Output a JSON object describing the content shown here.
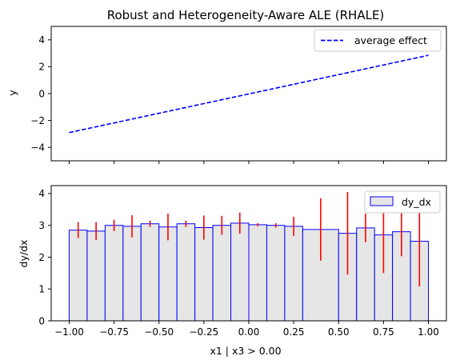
{
  "chart_data": [
    {
      "type": "line",
      "title": "Robust and Heterogeneity-Aware ALE (RHALE)",
      "xlabel": "",
      "ylabel": "y",
      "xlim": [
        -1.1,
        1.1
      ],
      "ylim": [
        -5,
        5
      ],
      "yticks": [
        -4,
        -2,
        0,
        2,
        4
      ],
      "xticks": [
        -1.0,
        -0.75,
        -0.5,
        -0.25,
        0.0,
        0.25,
        0.5,
        0.75,
        1.0
      ],
      "show_x_tick_labels": false,
      "grid": false,
      "legend_placement": "top-right",
      "series": [
        {
          "name": "average effect",
          "color": "#0000ff",
          "style": "dashed",
          "x": [
            -1.0,
            1.0
          ],
          "y": [
            -2.9,
            2.85
          ]
        }
      ]
    },
    {
      "type": "bar",
      "title": "",
      "xlabel": "x1 | x3 > 0.00",
      "ylabel": "dy/dx",
      "xlim": [
        -1.1,
        1.1
      ],
      "ylim": [
        0,
        4.25
      ],
      "yticks": [
        0,
        1,
        2,
        3,
        4
      ],
      "xticks": [
        -1.0,
        -0.75,
        -0.5,
        -0.25,
        0.0,
        0.25,
        0.5,
        0.75,
        1.0
      ],
      "xtick_labels": [
        "−1.00",
        "−0.75",
        "−0.50",
        "−0.25",
        "0.00",
        "0.25",
        "0.50",
        "0.75",
        "1.00"
      ],
      "grid": false,
      "legend_placement": "top-right",
      "bar_fill": "#e6e6e6",
      "bar_edge": "#0000ff",
      "error_color": "#ff0000",
      "series": [
        {
          "name": "dy_dx",
          "bins": [
            {
              "x0": -1.0,
              "x1": -0.9,
              "value": 2.85,
              "err": 0.25
            },
            {
              "x0": -0.9,
              "x1": -0.8,
              "value": 2.82,
              "err": 0.28
            },
            {
              "x0": -0.8,
              "x1": -0.7,
              "value": 3.0,
              "err": 0.18
            },
            {
              "x0": -0.7,
              "x1": -0.6,
              "value": 2.97,
              "err": 0.35
            },
            {
              "x0": -0.6,
              "x1": -0.5,
              "value": 3.05,
              "err": 0.1
            },
            {
              "x0": -0.5,
              "x1": -0.4,
              "value": 2.95,
              "err": 0.42
            },
            {
              "x0": -0.4,
              "x1": -0.3,
              "value": 3.05,
              "err": 0.1
            },
            {
              "x0": -0.3,
              "x1": -0.2,
              "value": 2.93,
              "err": 0.38
            },
            {
              "x0": -0.2,
              "x1": -0.1,
              "value": 3.0,
              "err": 0.3
            },
            {
              "x0": -0.1,
              "x1": 0.0,
              "value": 3.07,
              "err": 0.33
            },
            {
              "x0": 0.0,
              "x1": 0.1,
              "value": 3.02,
              "err": 0.05
            },
            {
              "x0": 0.1,
              "x1": 0.2,
              "value": 3.0,
              "err": 0.07
            },
            {
              "x0": 0.2,
              "x1": 0.3,
              "value": 2.97,
              "err": 0.3
            },
            {
              "x0": 0.3,
              "x1": 0.5,
              "value": 2.87,
              "err": 0.98
            },
            {
              "x0": 0.5,
              "x1": 0.6,
              "value": 2.75,
              "err": 1.3
            },
            {
              "x0": 0.6,
              "x1": 0.7,
              "value": 2.92,
              "err": 0.45
            },
            {
              "x0": 0.7,
              "x1": 0.8,
              "value": 2.7,
              "err": 1.2
            },
            {
              "x0": 0.8,
              "x1": 0.9,
              "value": 2.8,
              "err": 0.77
            },
            {
              "x0": 0.9,
              "x1": 1.0,
              "value": 2.5,
              "err": 1.42
            }
          ]
        }
      ]
    }
  ]
}
